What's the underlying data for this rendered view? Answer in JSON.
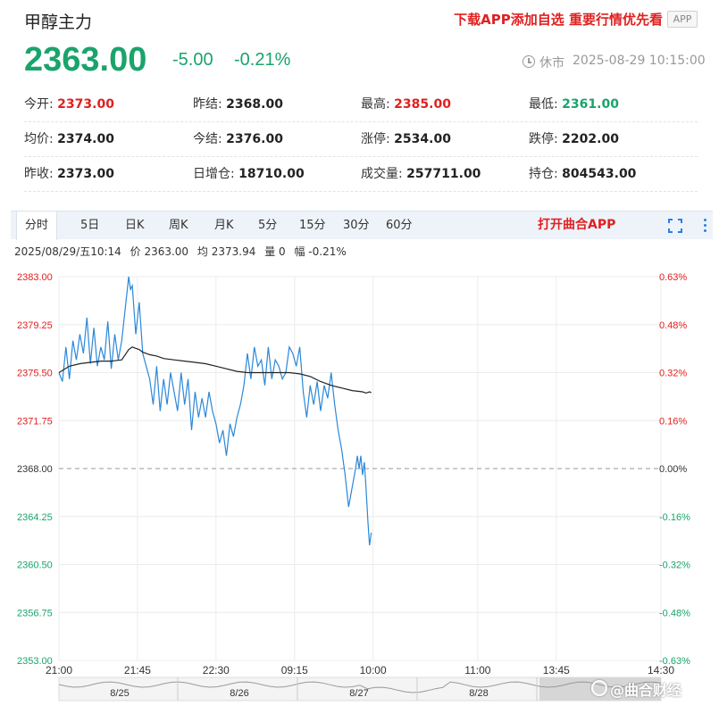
{
  "header": {
    "title": "甲醇主力",
    "promo": "下载APP添加自选 重要行情优先看",
    "app_badge": "APP",
    "price": "2363.00",
    "change": "-5.00",
    "change_pct": "-0.21%",
    "status": "休市",
    "timestamp": "2025-08-29 10:15:00"
  },
  "stats": [
    [
      {
        "label": "今开:",
        "value": "2373.00",
        "tone": "up"
      },
      {
        "label": "昨结:",
        "value": "2368.00",
        "tone": "none"
      },
      {
        "label": "最高:",
        "value": "2385.00",
        "tone": "up"
      },
      {
        "label": "最低:",
        "value": "2361.00",
        "tone": "down"
      }
    ],
    [
      {
        "label": "均价:",
        "value": "2374.00",
        "tone": "none"
      },
      {
        "label": "今结:",
        "value": "2376.00",
        "tone": "none"
      },
      {
        "label": "涨停:",
        "value": "2534.00",
        "tone": "none"
      },
      {
        "label": "跌停:",
        "value": "2202.00",
        "tone": "none"
      }
    ],
    [
      {
        "label": "昨收:",
        "value": "2373.00",
        "tone": "none"
      },
      {
        "label": "日增仓:",
        "value": "18710.00",
        "tone": "none"
      },
      {
        "label": "成交量:",
        "value": "257711.00",
        "tone": "none"
      },
      {
        "label": "持仓:",
        "value": "804543.00",
        "tone": "none"
      }
    ]
  ],
  "tabs": [
    "分时",
    "5日",
    "日K",
    "周K",
    "月K",
    "5分",
    "15分",
    "30分",
    "60分"
  ],
  "active_tab": "分时",
  "open_app": "打开曲合APP",
  "info": {
    "datetime": "2025/08/29/五10:14",
    "price": "价 2363.00",
    "avg": "均 2373.94",
    "volume": "量 0",
    "amp": "幅 -0.21%"
  },
  "watermark": "@曲合财经",
  "colors": {
    "up": "#e02020",
    "down": "#19a46b",
    "price_line": "#2b88d8",
    "avg_line": "#222222"
  },
  "chart_data": {
    "type": "line",
    "ylim": [
      2353.0,
      2383.0
    ],
    "baseline": 2368.0,
    "y_ticks_left": [
      "2383.00",
      "2379.25",
      "2375.50",
      "2371.75",
      "2368.00",
      "2364.25",
      "2360.50",
      "2356.75",
      "2353.00"
    ],
    "y_ticks_right": [
      "0.63%",
      "0.48%",
      "0.32%",
      "0.16%",
      "0.00%",
      "-0.16%",
      "-0.32%",
      "-0.48%",
      "-0.63%"
    ],
    "x_ticks": [
      "21:00",
      "21:45",
      "22:30",
      "09:15",
      "10:00",
      "11:00",
      "13:45",
      "14:30"
    ],
    "minutes_total": 345,
    "x_tick_minutes": [
      0,
      45,
      90,
      135,
      180,
      240,
      285,
      345
    ],
    "grid": true,
    "series": [
      {
        "name": "价",
        "x": [
          0,
          2,
          4,
          6,
          8,
          10,
          12,
          14,
          16,
          18,
          20,
          22,
          24,
          26,
          28,
          30,
          32,
          34,
          36,
          38,
          40,
          41,
          42,
          44,
          46,
          48,
          50,
          52,
          54,
          56,
          58,
          60,
          62,
          64,
          66,
          68,
          70,
          72,
          74,
          76,
          78,
          80,
          82,
          84,
          86,
          88,
          90,
          92,
          94,
          96,
          98,
          100,
          102,
          104,
          106,
          108,
          110,
          112,
          114,
          116,
          118,
          120,
          122,
          124,
          126,
          128,
          130,
          132,
          134,
          136,
          138,
          140,
          142,
          144,
          146,
          148,
          150,
          152,
          154,
          156,
          158,
          160,
          162,
          164,
          166,
          168,
          170,
          171,
          172,
          173,
          174,
          175,
          176,
          177,
          178,
          179
        ],
        "y": [
          2375.5,
          2374.8,
          2377.5,
          2375.0,
          2378.0,
          2376.5,
          2378.5,
          2377.0,
          2379.8,
          2376.2,
          2379.0,
          2376.0,
          2377.5,
          2376.5,
          2379.5,
          2375.8,
          2378.5,
          2376.5,
          2378.0,
          2380.5,
          2383.0,
          2382.0,
          2382.3,
          2378.5,
          2381.0,
          2377.0,
          2376.0,
          2375.0,
          2373.0,
          2376.0,
          2372.5,
          2375.0,
          2373.0,
          2375.5,
          2374.0,
          2372.5,
          2375.5,
          2373.0,
          2375.0,
          2371.0,
          2374.0,
          2372.0,
          2373.5,
          2372.0,
          2374.0,
          2372.5,
          2371.5,
          2370.0,
          2371.0,
          2369.0,
          2371.5,
          2370.5,
          2372.0,
          2373.0,
          2374.5,
          2377.0,
          2375.0,
          2377.5,
          2376.0,
          2376.5,
          2374.5,
          2377.5,
          2375.0,
          2376.5,
          2376.0,
          2375.0,
          2375.5,
          2377.5,
          2377.0,
          2376.0,
          2377.5,
          2374.0,
          2372.0,
          2374.5,
          2373.0,
          2374.8,
          2372.5,
          2374.5,
          2373.5,
          2375.5,
          2373.0,
          2371.0,
          2369.5,
          2367.5,
          2365.0,
          2366.5,
          2368.0,
          2369.0,
          2368.0,
          2369.0,
          2367.5,
          2368.5,
          2366.5,
          2364.0,
          2362.0,
          2363.0
        ]
      },
      {
        "name": "均",
        "x": [
          0,
          6,
          12,
          18,
          24,
          30,
          36,
          38,
          40,
          42,
          44,
          46,
          48,
          52,
          56,
          60,
          66,
          72,
          78,
          84,
          90,
          96,
          102,
          108,
          114,
          120,
          126,
          132,
          138,
          144,
          150,
          156,
          162,
          168,
          174,
          176,
          178,
          179
        ],
        "y": [
          2375.5,
          2376.0,
          2376.2,
          2376.3,
          2376.4,
          2376.4,
          2376.5,
          2376.9,
          2377.3,
          2377.5,
          2377.4,
          2377.3,
          2377.1,
          2376.9,
          2376.8,
          2376.6,
          2376.5,
          2376.4,
          2376.3,
          2376.2,
          2376.0,
          2375.8,
          2375.6,
          2375.5,
          2375.5,
          2375.5,
          2375.5,
          2375.5,
          2375.4,
          2375.2,
          2374.8,
          2374.5,
          2374.3,
          2374.1,
          2374.0,
          2373.9,
          2374.0,
          2373.94
        ]
      }
    ],
    "overview_labels": [
      "8/25",
      "8/26",
      "8/27",
      "8/28"
    ]
  }
}
